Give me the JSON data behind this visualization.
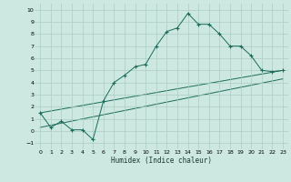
{
  "xlabel": "Humidex (Indice chaleur)",
  "bg_color": "#cce8e0",
  "grid_color": "#aaccc4",
  "line_color": "#1a6b5a",
  "xlim": [
    -0.5,
    23.5
  ],
  "ylim": [
    -1.5,
    10.5
  ],
  "yticks": [
    -1,
    0,
    1,
    2,
    3,
    4,
    5,
    6,
    7,
    8,
    9,
    10
  ],
  "xticks": [
    0,
    1,
    2,
    3,
    4,
    5,
    6,
    7,
    8,
    9,
    10,
    11,
    12,
    13,
    14,
    15,
    16,
    17,
    18,
    19,
    20,
    21,
    22,
    23
  ],
  "series1_x": [
    0,
    1,
    2,
    3,
    4,
    5,
    6,
    7,
    8,
    9,
    10,
    11,
    12,
    13,
    14,
    15,
    16,
    17,
    18,
    19,
    20,
    21,
    22,
    23
  ],
  "series1_y": [
    1.5,
    0.3,
    0.8,
    0.1,
    0.1,
    -0.7,
    2.5,
    4.0,
    4.6,
    5.3,
    5.5,
    7.0,
    8.2,
    8.5,
    9.7,
    8.8,
    8.8,
    8.0,
    7.0,
    7.0,
    6.2,
    5.0,
    4.9,
    5.0
  ],
  "trend1_x": [
    0,
    23
  ],
  "trend1_y": [
    1.5,
    5.0
  ],
  "trend2_x": [
    0,
    23
  ],
  "trend2_y": [
    0.3,
    4.3
  ]
}
